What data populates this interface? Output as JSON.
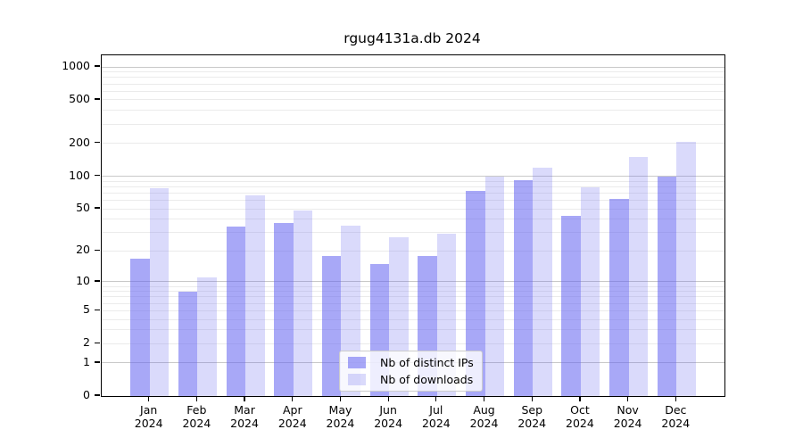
{
  "figure": {
    "title": "rgug4131a.db 2024"
  },
  "chart_data": {
    "type": "bar",
    "title": "rgug4131a.db 2024",
    "categories": [
      "Jan 2024",
      "Feb 2024",
      "Mar 2024",
      "Apr 2024",
      "May 2024",
      "Jun 2024",
      "Jul 2024",
      "Aug 2024",
      "Sep 2024",
      "Oct 2024",
      "Nov 2024",
      "Dec 2024"
    ],
    "series": [
      {
        "name": "Nb of distinct IPs",
        "values": [
          17,
          8,
          34,
          37,
          18,
          15,
          18,
          73,
          92,
          43,
          62,
          100
        ],
        "color": "rgba(100,100,240,0.56)"
      },
      {
        "name": "Nb of downloads",
        "values": [
          77,
          11,
          66,
          48,
          35,
          27,
          29,
          100,
          120,
          79,
          150,
          205
        ],
        "color": "rgba(100,100,240,0.24)"
      }
    ],
    "yscale": "log1p",
    "yticks": [
      0,
      1,
      2,
      5,
      10,
      20,
      50,
      100,
      200,
      500,
      1000
    ],
    "ylim": [
      0,
      1276
    ],
    "xlabel": "",
    "ylabel": "",
    "grid": true,
    "legend_position": "lower center"
  },
  "colors": {
    "grid_major": "#c8c8c8",
    "grid_minor": "#ebebeb",
    "frame": "#000000",
    "background": "#ffffff"
  }
}
